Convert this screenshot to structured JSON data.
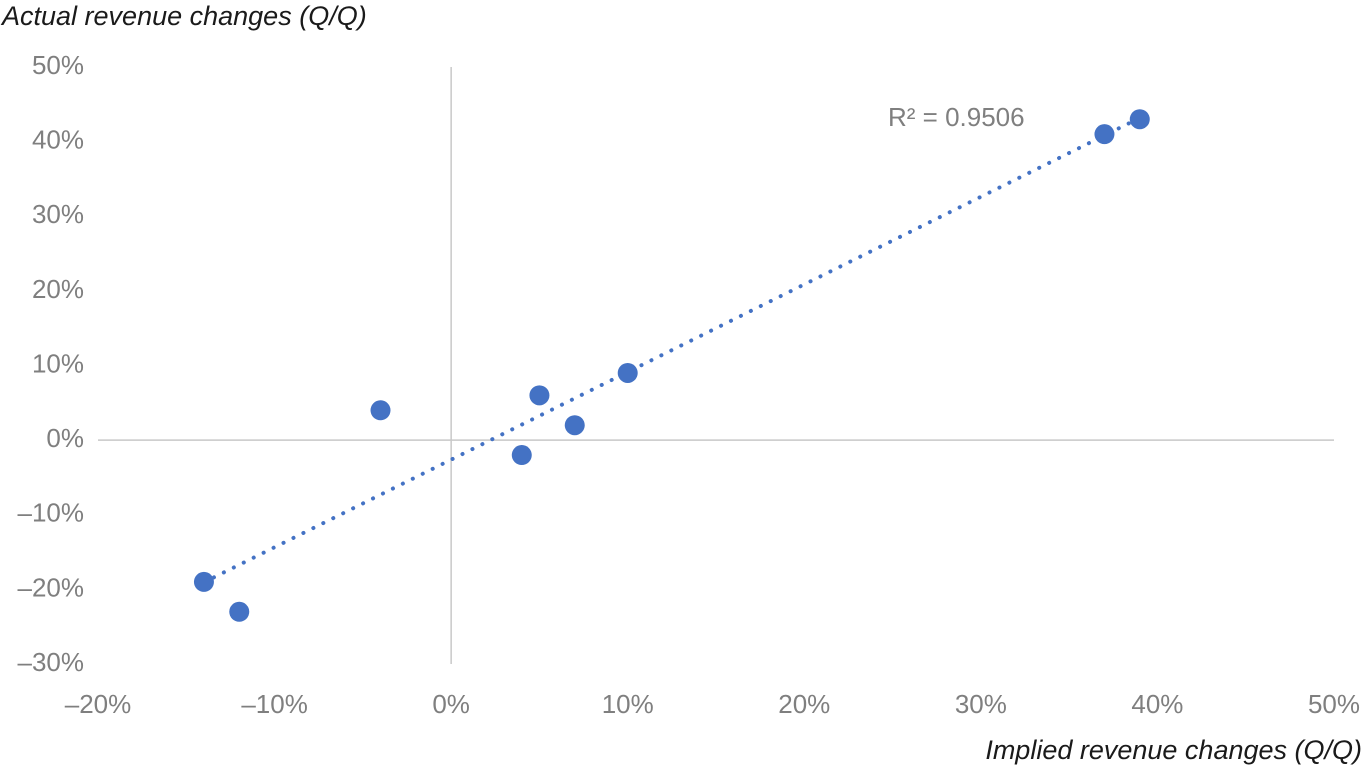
{
  "chart_data": {
    "type": "scatter",
    "y_title": "Actual revenue changes (Q/Q)",
    "x_title": "Implied revenue changes (Q/Q)",
    "annotation": "R² = 0.9506",
    "trendline": true,
    "color": "#4472c4",
    "x": [
      -14,
      -12,
      -4,
      4,
      5,
      7,
      10,
      37,
      39
    ],
    "values": [
      -19,
      -23,
      4,
      -2,
      6,
      2,
      9,
      41,
      43
    ],
    "xlim": [
      -20,
      50
    ],
    "ylim": [
      -30,
      50
    ],
    "xticks": [
      {
        "value": -20,
        "label": "–20%"
      },
      {
        "value": -10,
        "label": "–10%"
      },
      {
        "value": 0,
        "label": "0%"
      },
      {
        "value": 10,
        "label": "10%"
      },
      {
        "value": 20,
        "label": "20%"
      },
      {
        "value": 30,
        "label": "30%"
      },
      {
        "value": 40,
        "label": "40%"
      },
      {
        "value": 50,
        "label": "50%"
      }
    ],
    "yticks": [
      {
        "value": -30,
        "label": "–30%"
      },
      {
        "value": -20,
        "label": "–20%"
      },
      {
        "value": -10,
        "label": "–10%"
      },
      {
        "value": 0,
        "label": "0%"
      },
      {
        "value": 10,
        "label": "10%"
      },
      {
        "value": 20,
        "label": "20%"
      },
      {
        "value": 30,
        "label": "30%"
      },
      {
        "value": 40,
        "label": "40%"
      },
      {
        "value": 50,
        "label": "50%"
      }
    ]
  }
}
